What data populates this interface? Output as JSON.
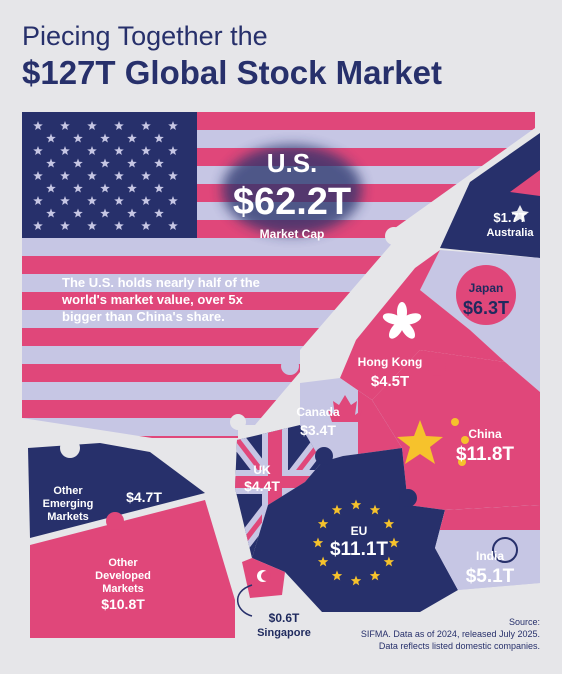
{
  "title_line1": "Piecing Together the",
  "title_line2": "$127T Global Stock Market",
  "callout": {
    "lines": [
      "The U.S. holds nearly half of the",
      "world's market value, over 5x",
      "bigger than China's share."
    ]
  },
  "source": {
    "lines": [
      "Source:",
      "SIFMA. Data as of 2024, released July 2025.",
      "Data reflects listed domestic companies."
    ]
  },
  "colors": {
    "navy": "#27306b",
    "pink": "#e0477a",
    "lavender": "#b9bce0",
    "background": "#e6e6e9"
  },
  "chart_data": {
    "type": "treemap",
    "unit": "$T",
    "segments": [
      {
        "name": "U.S.",
        "value": "$62.2T",
        "note": "Market Cap",
        "amount": 62.2
      },
      {
        "name": "Australia",
        "value": "$1.7T",
        "amount": 1.7
      },
      {
        "name": "Japan",
        "value": "$6.3T",
        "amount": 6.3
      },
      {
        "name": "Hong Kong",
        "value": "$4.5T",
        "amount": 4.5
      },
      {
        "name": "China",
        "value": "$11.8T",
        "amount": 11.8
      },
      {
        "name": "Canada",
        "value": "$3.4T",
        "amount": 3.4
      },
      {
        "name": "UK",
        "value": "$4.4T",
        "amount": 4.4
      },
      {
        "name": "EU",
        "value": "$11.1T",
        "amount": 11.1
      },
      {
        "name": "India",
        "value": "$5.1T",
        "amount": 5.1
      },
      {
        "name": "Singapore",
        "value": "$0.6T",
        "amount": 0.6
      },
      {
        "name": "Other Emerging Markets",
        "value": "$4.7T",
        "amount": 4.7
      },
      {
        "name": "Other Developed Markets",
        "value": "$10.8T",
        "amount": 10.8
      }
    ]
  }
}
